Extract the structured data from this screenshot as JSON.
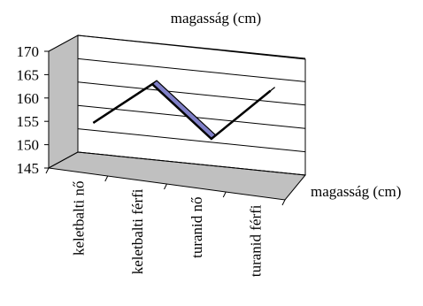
{
  "chart_data": {
    "type": "line",
    "title": "magasság (cm)",
    "categories": [
      "keletbalti nő",
      "keletbalti férfi",
      "turanid nő",
      "turanid férfi"
    ],
    "series": [
      {
        "name": "magasság (cm)",
        "values": [
          154,
          164,
          154,
          166
        ]
      }
    ],
    "ylim": [
      145,
      170
    ],
    "yticks": [
      145,
      150,
      155,
      160,
      165,
      170
    ],
    "grid": true,
    "legend": "right",
    "colors": {
      "ribbon": "#8080c8",
      "line": "#000000",
      "wall": "#c0c0c0",
      "floor": "#c0c0c0"
    }
  }
}
